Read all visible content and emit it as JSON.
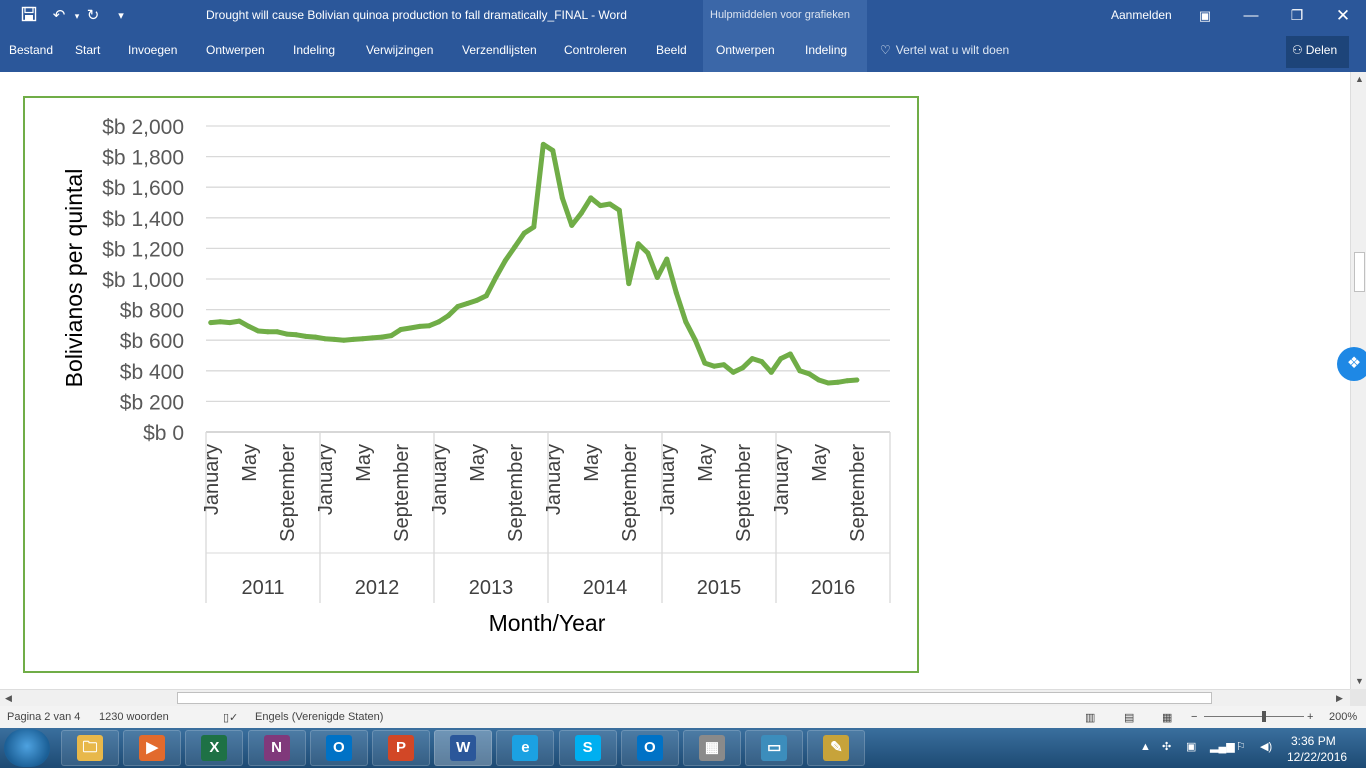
{
  "titlebar": {
    "doc_title": "Drought will cause Bolivian quinoa production to fall dramatically_FINAL - Word",
    "context_tab": "Hulpmiddelen voor grafieken",
    "sign_in": "Aanmelden",
    "save_icon": "save-icon",
    "undo_icon": "undo-icon",
    "redo_icon": "redo-icon"
  },
  "ribbon": {
    "tabs": [
      {
        "label": "Bestand"
      },
      {
        "label": "Start"
      },
      {
        "label": "Invoegen"
      },
      {
        "label": "Ontwerpen"
      },
      {
        "label": "Indeling"
      },
      {
        "label": "Verwijzingen"
      },
      {
        "label": "Verzendlijsten"
      },
      {
        "label": "Controleren"
      },
      {
        "label": "Beeld"
      },
      {
        "label": "Ontwerpen"
      },
      {
        "label": "Indeling"
      }
    ],
    "tell_me": "Vertel wat u wilt doen",
    "share": "Delen"
  },
  "chart_data": {
    "type": "line",
    "ylabel": "Bolivianos per quintal",
    "xlabel": "Month/Year",
    "ylim": [
      0,
      2000
    ],
    "ytick_labels": [
      "$b 0",
      "$b 200",
      "$b 400",
      "$b 600",
      "$b 800",
      "$b 1,000",
      "$b 1,200",
      "$b 1,400",
      "$b 1,600",
      "$b 1,800",
      "$b 2,000"
    ],
    "years": [
      "2011",
      "2012",
      "2013",
      "2014",
      "2015",
      "2016"
    ],
    "month_labels": [
      "January",
      "May",
      "September"
    ],
    "line_color": "#70ad47",
    "grid": true,
    "legend": "none",
    "series": [
      {
        "values": [
          715,
          720,
          715,
          725,
          690,
          660,
          655,
          655,
          640,
          635,
          625,
          620,
          610,
          605,
          600,
          605,
          610,
          615,
          620,
          630,
          670,
          680,
          690,
          695,
          720,
          760,
          820,
          840,
          860,
          890,
          1010,
          1120,
          1210,
          1300,
          1340,
          1880,
          1840,
          1530,
          1350,
          1430,
          1530,
          1480,
          1490,
          1450,
          970,
          1230,
          1170,
          1010,
          1130,
          910,
          720,
          600,
          450,
          430,
          440,
          390,
          420,
          480,
          460,
          390,
          480,
          510,
          400,
          380,
          340,
          320,
          325,
          335,
          340
        ]
      }
    ]
  },
  "statusbar": {
    "page": "Pagina 2 van 4",
    "words": "1230 woorden",
    "language": "Engels (Verenigde Staten)",
    "zoom": "200%"
  },
  "taskbar": {
    "apps": [
      {
        "icon": "explorer-icon",
        "glyph": "🗀"
      },
      {
        "icon": "media-player-icon",
        "glyph": "▶"
      },
      {
        "icon": "excel-icon",
        "glyph": "X"
      },
      {
        "icon": "onenote-icon",
        "glyph": "N"
      },
      {
        "icon": "outlook-icon",
        "glyph": "O"
      },
      {
        "icon": "powerpoint-icon",
        "glyph": "P"
      },
      {
        "icon": "word-icon",
        "glyph": "W"
      },
      {
        "icon": "internet-explorer-icon",
        "glyph": "e"
      },
      {
        "icon": "skype-icon",
        "glyph": "S"
      },
      {
        "icon": "outlook-icon",
        "glyph": "O"
      },
      {
        "icon": "calculator-icon",
        "glyph": "▦"
      },
      {
        "icon": "photo-viewer-icon",
        "glyph": "▭"
      },
      {
        "icon": "paint-icon",
        "glyph": "✎"
      }
    ],
    "time": "3:36 PM",
    "date": "12/22/2016"
  }
}
